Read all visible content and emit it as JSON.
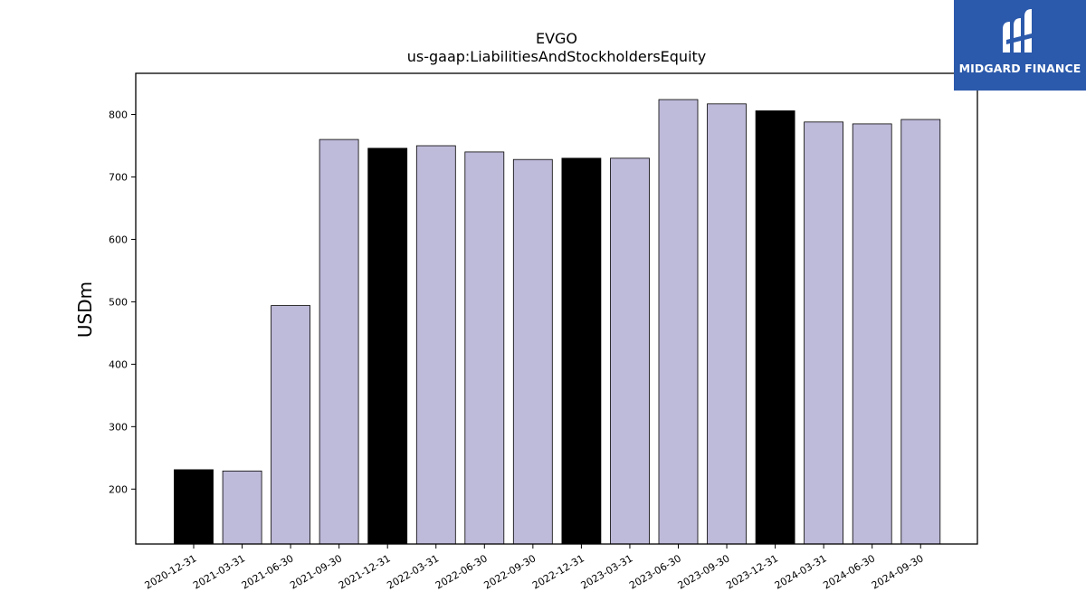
{
  "logo": {
    "text": "MIDGARD FINANCE",
    "background": "#2b59ab",
    "icon": "midgard-m-logo-icon"
  },
  "chart_data": {
    "type": "bar",
    "title": "EVGO",
    "subtitle": "us-gaap:LiabilitiesAndStockholdersEquity",
    "xlabel": "",
    "ylabel": "USDm",
    "ylim": [
      112,
      866
    ],
    "yticks": [
      200,
      300,
      400,
      500,
      600,
      700,
      800
    ],
    "grid": false,
    "colors": {
      "annual": "#000000",
      "quarterly": "#bebad9",
      "edge": "#000000"
    },
    "categories": [
      "2020-12-31",
      "2021-03-31",
      "2021-06-30",
      "2021-09-30",
      "2021-12-31",
      "2022-03-31",
      "2022-06-30",
      "2022-09-30",
      "2022-12-31",
      "2023-03-31",
      "2023-06-30",
      "2023-09-30",
      "2023-12-31",
      "2024-03-31",
      "2024-06-30",
      "2024-09-30"
    ],
    "values": [
      231,
      229,
      494,
      760,
      746,
      750,
      740,
      728,
      730,
      730,
      824,
      817,
      806,
      788,
      785,
      792
    ],
    "annual": [
      true,
      false,
      false,
      false,
      true,
      false,
      false,
      false,
      true,
      false,
      false,
      false,
      true,
      false,
      false,
      false
    ]
  }
}
